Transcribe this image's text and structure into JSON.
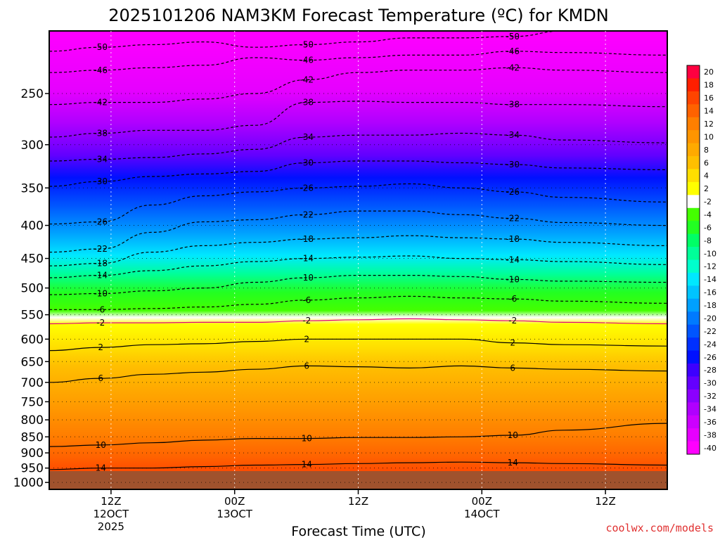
{
  "title": "2025101206 NAM3KM Forecast Temperature (ºC) for KMDN",
  "xlabel": "Forecast Time (UTC)",
  "credit": "coolwx.com/models",
  "chart_data": {
    "type": "heatmap",
    "title": "2025101206 NAM3KM Forecast Temperature (ºC) for KMDN",
    "xlabel": "Forecast Time (UTC)",
    "ylabel": "",
    "x_range_hours": [
      0,
      60
    ],
    "y_axis_pressure_hpa": [
      200,
      1025
    ],
    "y_scale": "log",
    "y_inverted": true,
    "grid": true,
    "y_ticks": [
      250,
      300,
      350,
      400,
      450,
      500,
      550,
      600,
      650,
      700,
      750,
      800,
      850,
      900,
      950,
      1000
    ],
    "x_ticks": [
      {
        "hour": 6,
        "l1": "12Z",
        "l2": "12OCT",
        "l3": "2025"
      },
      {
        "hour": 18,
        "l1": "00Z",
        "l2": "13OCT",
        "l3": ""
      },
      {
        "hour": 30,
        "l1": "12Z",
        "l2": "",
        "l3": ""
      },
      {
        "hour": 42,
        "l1": "00Z",
        "l2": "14OCT",
        "l3": ""
      },
      {
        "hour": 54,
        "l1": "12Z",
        "l2": "",
        "l3": ""
      }
    ],
    "colorbar": {
      "labels": [
        "20",
        "18",
        "16",
        "14",
        "12",
        "10",
        "8",
        "6",
        "4",
        "2",
        "-2",
        "-4",
        "-6",
        "-8",
        "-10",
        "-12",
        "-14",
        "-16",
        "-18",
        "-20",
        "-22",
        "-24",
        "-26",
        "-28",
        "-30",
        "-32",
        "-34",
        "-36",
        "-38",
        "-40"
      ],
      "colors": [
        "#ff0040",
        "#ff1f00",
        "#ff4400",
        "#ff6200",
        "#ff7f00",
        "#ff9500",
        "#ffaa00",
        "#ffbf00",
        "#ffdf00",
        "#ffff00",
        "#ffffff",
        "#44ff00",
        "#22ff22",
        "#00ff66",
        "#00ff99",
        "#00ffcc",
        "#00e8ff",
        "#00c4ff",
        "#00a0ff",
        "#007aff",
        "#0055ff",
        "#0030ff",
        "#0010ff",
        "#3d00ff",
        "#6400ff",
        "#8b00ff",
        "#b000ff",
        "#cc00ff",
        "#e600ff",
        "#ff00ff"
      ]
    },
    "contours": [
      {
        "label": "-50",
        "p": [
          215,
          212,
          210,
          208,
          212,
          210,
          208,
          205,
          205,
          204,
          200,
          200
        ]
      },
      {
        "label": "-46",
        "p": [
          232,
          230,
          228,
          226,
          220,
          222,
          220,
          218,
          218,
          215,
          216,
          218
        ]
      },
      {
        "label": "-42",
        "p": [
          260,
          258,
          258,
          255,
          250,
          238,
          232,
          230,
          230,
          228,
          230,
          232
        ]
      },
      {
        "label": "-38",
        "p": [
          292,
          288,
          285,
          285,
          280,
          258,
          257,
          258,
          258,
          260,
          260,
          262
        ]
      },
      {
        "label": "-34",
        "p": [
          318,
          316,
          314,
          310,
          305,
          292,
          290,
          290,
          288,
          290,
          295,
          298
        ]
      },
      {
        "label": "-30",
        "p": [
          348,
          342,
          336,
          333,
          330,
          320,
          318,
          318,
          320,
          322,
          326,
          328
        ]
      },
      {
        "label": "-26",
        "p": [
          398,
          395,
          372,
          360,
          355,
          350,
          348,
          345,
          350,
          355,
          362,
          368
        ]
      },
      {
        "label": "-22",
        "p": [
          440,
          435,
          410,
          395,
          392,
          385,
          380,
          380,
          385,
          390,
          396,
          400
        ]
      },
      {
        "label": "-18",
        "p": [
          462,
          458,
          440,
          430,
          425,
          420,
          418,
          415,
          418,
          420,
          425,
          430
        ]
      },
      {
        "label": "-14",
        "p": [
          482,
          478,
          470,
          462,
          455,
          450,
          448,
          446,
          450,
          452,
          455,
          460
        ]
      },
      {
        "label": "-10",
        "p": [
          512,
          510,
          505,
          500,
          490,
          482,
          478,
          478,
          480,
          485,
          488,
          490
        ]
      },
      {
        "label": "-6",
        "p": [
          540,
          540,
          538,
          535,
          530,
          522,
          518,
          515,
          518,
          520,
          524,
          528
        ]
      },
      {
        "label": "-2",
        "p": [
          568,
          566,
          566,
          565,
          565,
          562,
          560,
          558,
          560,
          562,
          565,
          568
        ]
      },
      {
        "label": "2",
        "p": [
          625,
          618,
          612,
          610,
          605,
          600,
          600,
          600,
          600,
          608,
          612,
          615
        ]
      },
      {
        "label": "6",
        "p": [
          700,
          690,
          680,
          675,
          668,
          660,
          662,
          665,
          660,
          665,
          668,
          672
        ]
      },
      {
        "label": "10",
        "p": [
          880,
          875,
          868,
          860,
          855,
          855,
          852,
          852,
          850,
          845,
          830,
          810
        ]
      },
      {
        "label": "14",
        "p": [
          955,
          950,
          950,
          945,
          940,
          938,
          935,
          932,
          930,
          932,
          935,
          940
        ]
      }
    ],
    "contour_hours": [
      0,
      5,
      10,
      15,
      20,
      25,
      30,
      35,
      40,
      45,
      50,
      60
    ]
  }
}
